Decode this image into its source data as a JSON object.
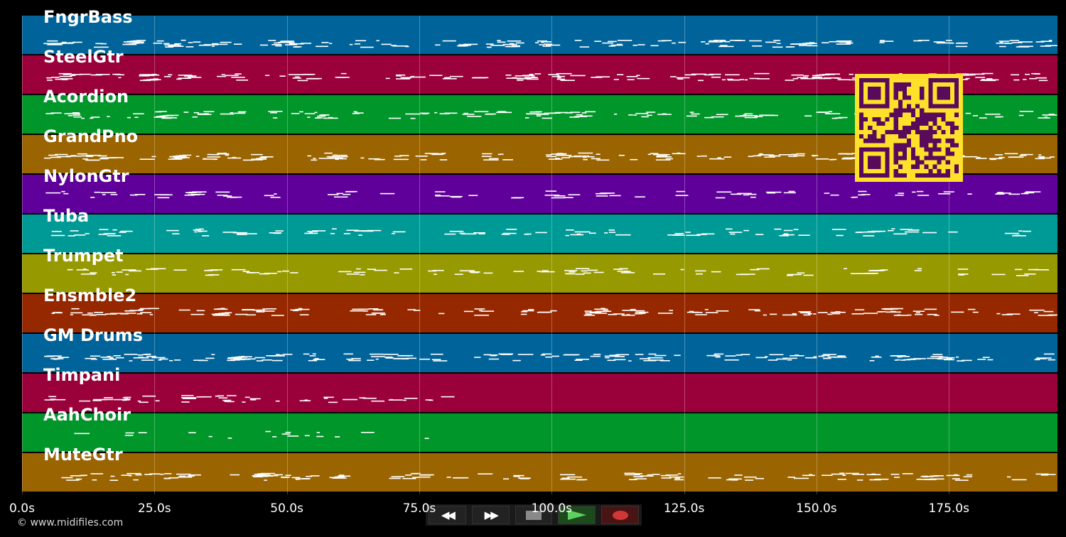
{
  "lanes": [
    {
      "name": "FngrBass",
      "color": "#00649a",
      "density": 1.0,
      "yoff": 0.72
    },
    {
      "name": "SteelGtr",
      "color": "#9a003a",
      "density": 1.0,
      "yoff": 0.55
    },
    {
      "name": "Acordion",
      "color": "#009629",
      "density": 0.8,
      "yoff": 0.5
    },
    {
      "name": "GrandPno",
      "color": "#9a6400",
      "density": 1.0,
      "yoff": 0.55
    },
    {
      "name": "NylonGtr",
      "color": "#60009a",
      "density": 0.5,
      "yoff": 0.5
    },
    {
      "name": "Tuba",
      "color": "#009a96",
      "density": 0.6,
      "yoff": 0.45
    },
    {
      "name": "Trumpet",
      "color": "#969a00",
      "density": 0.55,
      "yoff": 0.45
    },
    {
      "name": "Ensmble2",
      "color": "#962800",
      "density": 0.9,
      "yoff": 0.45
    },
    {
      "name": "GM Drums",
      "color": "#00649a",
      "density": 1.0,
      "yoff": 0.6
    },
    {
      "name": "Timpani",
      "color": "#9a003a",
      "density": 0.3,
      "yoff": 0.65
    },
    {
      "name": "AahChoir",
      "color": "#009629",
      "density": 0.1,
      "yoff": 0.55
    },
    {
      "name": "MuteGtr",
      "color": "#9a6400",
      "density": 0.8,
      "yoff": 0.6
    }
  ],
  "time_axis": {
    "ticks": [
      "0.0s",
      "25.0s",
      "50.0s",
      "75.0s",
      "100.0s",
      "125.0s",
      "150.0s",
      "175.0s"
    ],
    "values": [
      0,
      25,
      50,
      75,
      100,
      125,
      150,
      175
    ],
    "max": 195.5
  },
  "copyright": "© www.midifiles.com",
  "transport": {
    "rewind_icon": "rewind-icon",
    "forward_icon": "fast-forward-icon",
    "stop_icon": "stop-icon",
    "play_icon": "play-icon",
    "record_icon": "record-icon"
  },
  "colors": {
    "qr_fg": "#ffe12b",
    "qr_bg": "#5a0a5a",
    "note": "#ffffff"
  }
}
